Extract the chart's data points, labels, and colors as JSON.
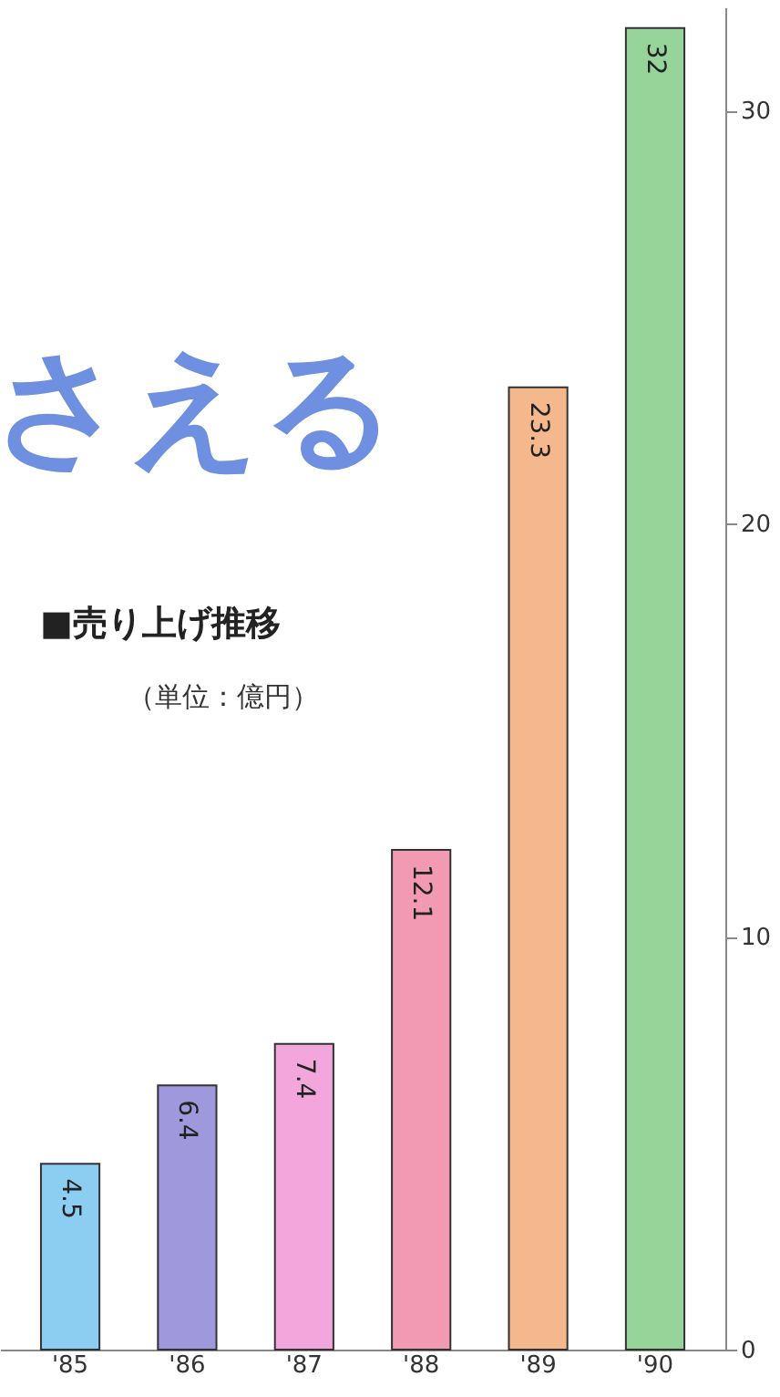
{
  "chart_data": {
    "type": "bar",
    "title": "■売り上げ推移",
    "subtitle": "（単位：億円）",
    "annotations": [
      "さえる"
    ],
    "categories": [
      "'85",
      "'86",
      "'87",
      "'88",
      "'89",
      "'90"
    ],
    "values": [
      4.5,
      6.4,
      7.4,
      12.1,
      23.3,
      32
    ],
    "colors": [
      "#8ccdf2",
      "#9f98dc",
      "#f2a6dc",
      "#f29ab4",
      "#f5b88c",
      "#96d49a"
    ],
    "ylim": [
      0,
      32.5
    ],
    "yticks": [
      0,
      10,
      20,
      30
    ],
    "data_labels": true,
    "grid": false
  }
}
